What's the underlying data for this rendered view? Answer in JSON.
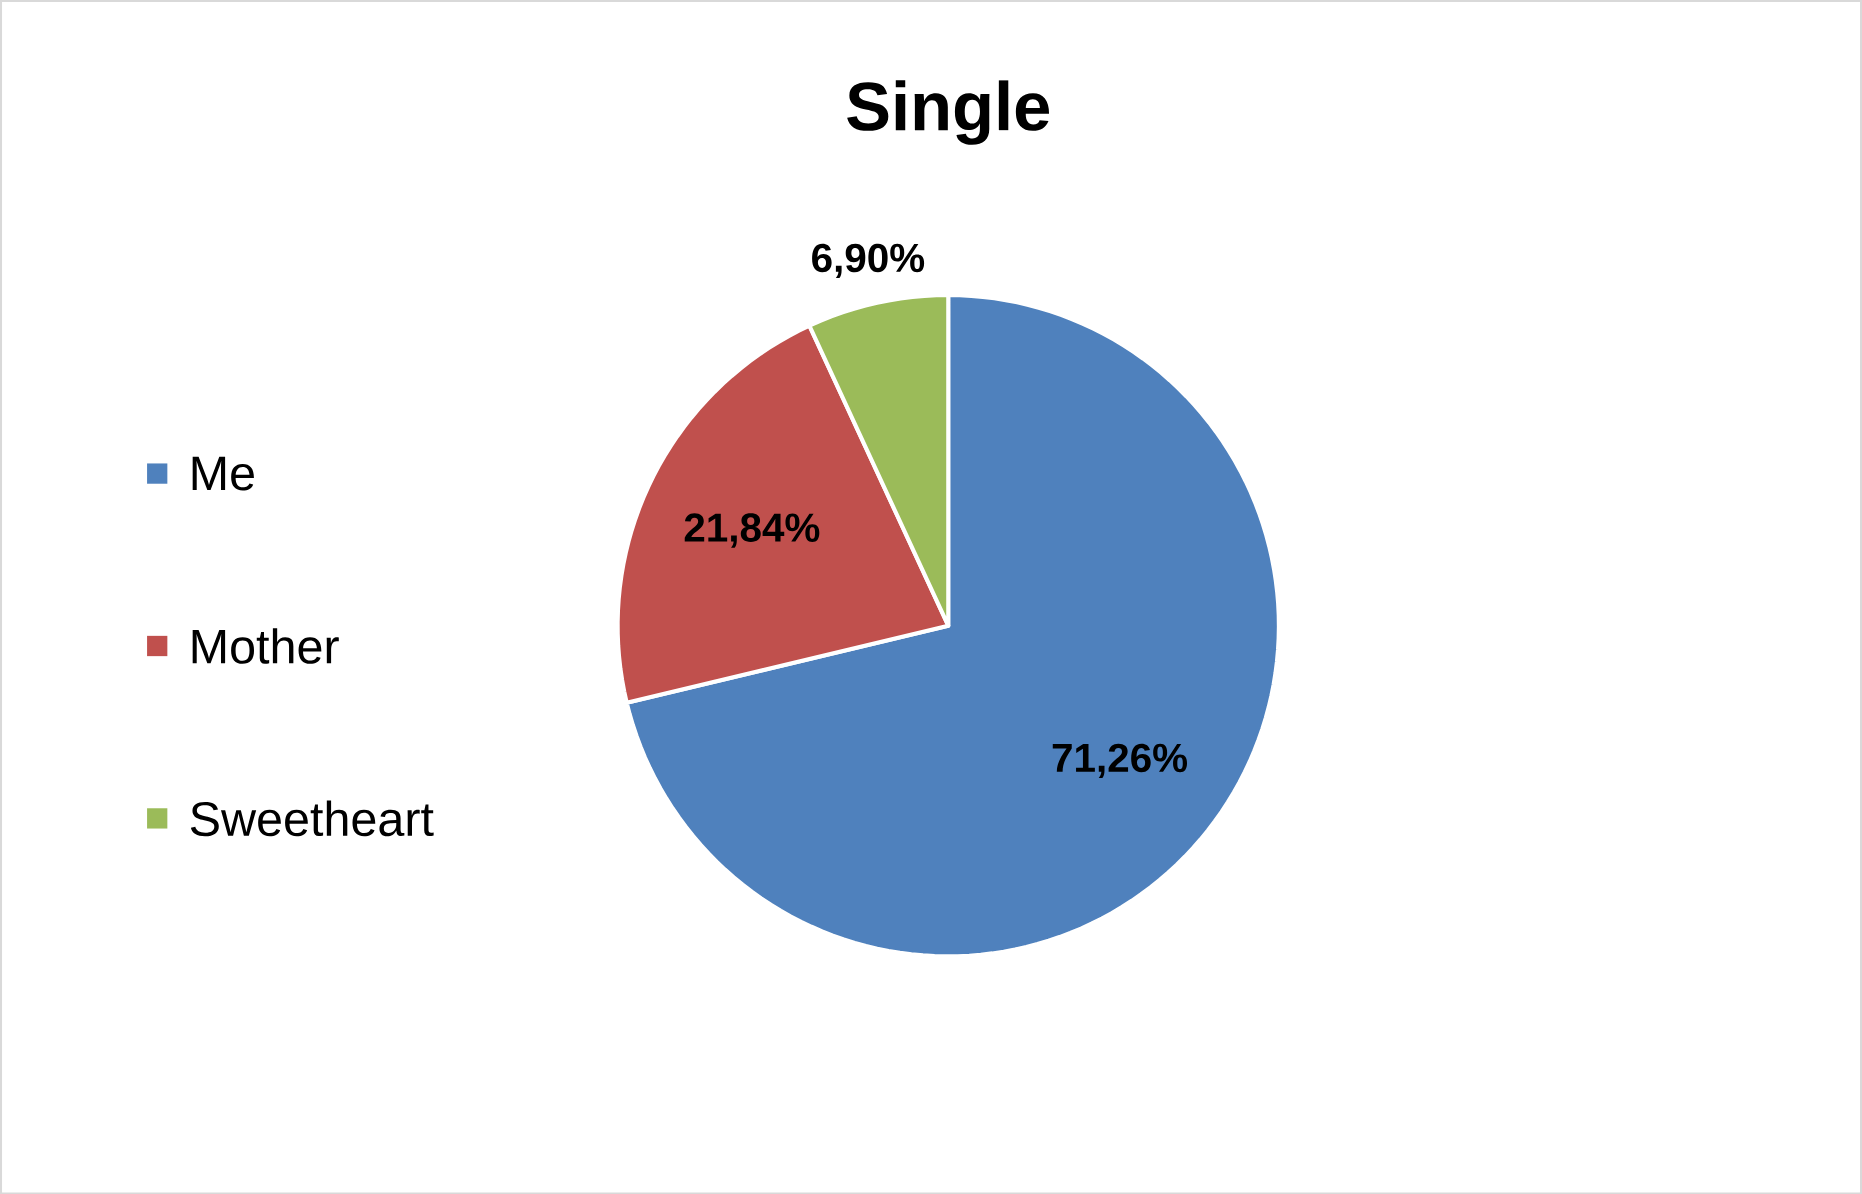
{
  "chart_data": {
    "type": "pie",
    "title": "Single",
    "categories": [
      "Me",
      "Mother",
      "Sweetheart"
    ],
    "values": [
      71.26,
      21.84,
      6.9
    ],
    "value_labels": [
      "71,26%",
      "21,84%",
      "6,90%"
    ],
    "colors": [
      "#4f81bd",
      "#c0504d",
      "#9bbb59"
    ],
    "legend": "left"
  }
}
